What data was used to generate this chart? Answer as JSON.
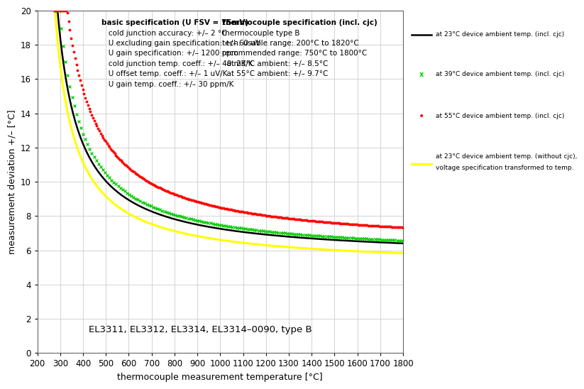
{
  "xlabel": "thermocouple measurement temperature [°C]",
  "ylabel": "measurement deviation +/– [°C]",
  "xlim": [
    200,
    1800
  ],
  "ylim": [
    0,
    20
  ],
  "xticks": [
    200,
    300,
    400,
    500,
    600,
    700,
    800,
    900,
    1000,
    1100,
    1200,
    1300,
    1400,
    1500,
    1600,
    1700,
    1800
  ],
  "yticks": [
    0,
    2,
    4,
    6,
    8,
    10,
    12,
    14,
    16,
    18,
    20
  ],
  "annotation": "EL3311, EL3312, EL3314, EL3314–0090, type B",
  "text_basic_line1": "basic specification (U FSV = 75mV)",
  "text_basic_lines": "   cold junction accuracy: +/– 2 °C\n   U excluding gain specification: +/– 60 uV\n   U gain specification: +/– 1200 ppm\n   cold junction temp. coeff.: +/– 40 mK/K\n   U offset temp. coeff.: +/– 1 uV/K\n   U gain temp. coeff.: +/– 30 ppm/K",
  "text_tc_line1": "thermocouple specification (incl. cjc)",
  "text_tc_lines": "thermocouple type B\ntech. usable range: 200°C to 1820°C\nrecommended range: 750°C to 1800°C\n  at 23°C ambient: +/– 8.5°C\n  at 55°C ambient: +/– 9.7°C",
  "legend_23_incl": "at 23°C device ambient temp. (incl. cjc)",
  "legend_39_incl": "at 39°C device ambient temp. (incl. cjc)",
  "legend_55_incl": "at 55°C device ambient temp. (incl. cjc)",
  "legend_23_excl_1": "at 23°C device ambient temp. (without cjc),",
  "legend_23_excl_2": "voltage specification transformed to temp.",
  "bg_color": "#ffffff",
  "grid_color": "#cccccc",
  "line_23_color": "#000000",
  "line_39_color": "#00cc00",
  "line_55_color": "#ff0000",
  "line_23excl_color": "#ffff00",
  "curve_23_A": 1380.0,
  "curve_23_T0": 193.0,
  "curve_23_B": 5.55,
  "curve_39_A": 1480.0,
  "curve_39_T0": 193.0,
  "curve_39_B": 5.65,
  "curve_55_A": 1900.0,
  "curve_55_T0": 193.0,
  "curve_55_B": 6.15,
  "curve_23e_A": 1260.0,
  "curve_23e_T0": 193.0,
  "curve_23e_B": 5.05,
  "T_start": 275.0
}
